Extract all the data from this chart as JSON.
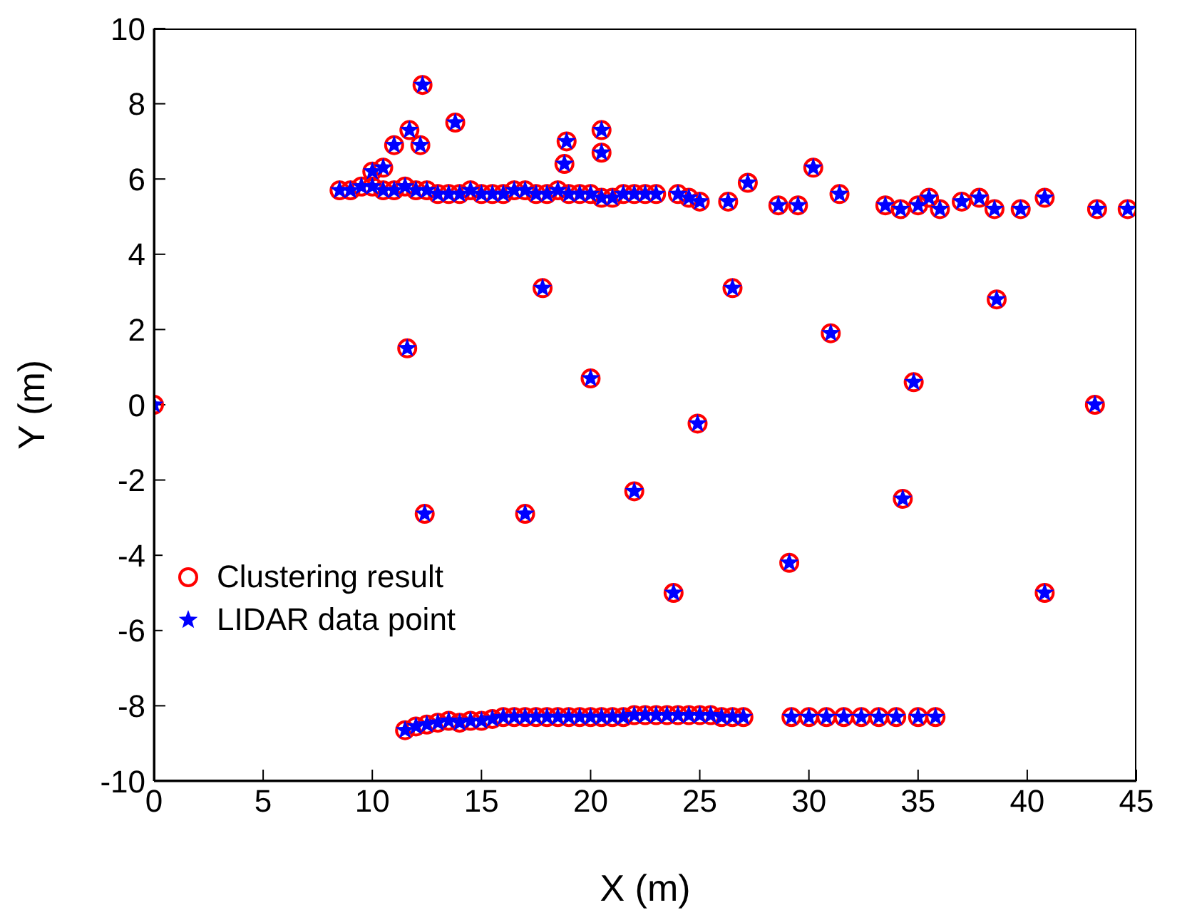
{
  "chart_data": {
    "type": "scatter",
    "xlabel": "X (m)",
    "ylabel": "Y (m)",
    "xlim": [
      0,
      45
    ],
    "xticks": [
      0,
      5,
      10,
      15,
      20,
      25,
      30,
      35,
      40,
      45
    ],
    "ylim": [
      -10,
      10
    ],
    "yticks": [
      -10,
      -8,
      -6,
      -4,
      -2,
      0,
      2,
      4,
      6,
      8,
      10
    ],
    "grid": false,
    "legend": "bottom left",
    "x": [
      8.5,
      9,
      9.5,
      10,
      10.5,
      11,
      11.5,
      12,
      12.5,
      13,
      13.5,
      14,
      14.5,
      15,
      15.5,
      16,
      16.5,
      17,
      17.5,
      18,
      18.5,
      19,
      19.5,
      20,
      20.5,
      21,
      21.5,
      22,
      22.5,
      23,
      24,
      24.5,
      25,
      26.3,
      27.2,
      28.6,
      29.5,
      30.2,
      31.4,
      33.5,
      34.2,
      35,
      35.5,
      36,
      37,
      37.8,
      38.5,
      39.7,
      40.8,
      43.2,
      44.6,
      10,
      10.5,
      11,
      11.7,
      12.2,
      12.3,
      13.8,
      18.8,
      18.9,
      20.5,
      20.5,
      0,
      11.6,
      17.8,
      20,
      24.9,
      26.5,
      31,
      34.8,
      38.6,
      43.1,
      12.4,
      17,
      22,
      23.8,
      29.1,
      34.3,
      40.8,
      11.5,
      12,
      12.5,
      13,
      13.5,
      14,
      14.5,
      15,
      15.5,
      16,
      16.5,
      17,
      17.5,
      18,
      18.5,
      19,
      19.5,
      20,
      20.5,
      21,
      21.5,
      22,
      22.5,
      23,
      23.5,
      24,
      24.5,
      25,
      25.5,
      26,
      26.5,
      27,
      29.2,
      30,
      30.8,
      31.6,
      32.4,
      33.2,
      34,
      35,
      35.8
    ],
    "series": [
      {
        "name": "Clustering result",
        "color": "#ff0000",
        "marker": "circle",
        "values": [
          5.7,
          5.7,
          5.8,
          5.8,
          5.7,
          5.7,
          5.8,
          5.7,
          5.7,
          5.6,
          5.6,
          5.6,
          5.7,
          5.6,
          5.6,
          5.6,
          5.7,
          5.7,
          5.6,
          5.6,
          5.7,
          5.6,
          5.6,
          5.6,
          5.5,
          5.5,
          5.6,
          5.6,
          5.6,
          5.6,
          5.6,
          5.5,
          5.4,
          5.4,
          5.9,
          5.3,
          5.3,
          6.3,
          5.6,
          5.3,
          5.2,
          5.3,
          5.5,
          5.2,
          5.4,
          5.5,
          5.2,
          5.2,
          5.5,
          5.2,
          5.2,
          6.2,
          6.3,
          6.9,
          7.3,
          6.9,
          8.5,
          7.5,
          6.4,
          7.0,
          6.7,
          7.3,
          0,
          1.5,
          3.1,
          0.7,
          -0.5,
          3.1,
          1.9,
          0.6,
          2.8,
          0,
          -2.9,
          -2.9,
          -2.3,
          -5.0,
          -4.2,
          -2.5,
          -5.0,
          -8.65,
          -8.55,
          -8.5,
          -8.45,
          -8.4,
          -8.45,
          -8.4,
          -8.4,
          -8.35,
          -8.3,
          -8.3,
          -8.3,
          -8.3,
          -8.3,
          -8.3,
          -8.3,
          -8.3,
          -8.3,
          -8.3,
          -8.3,
          -8.3,
          -8.25,
          -8.25,
          -8.25,
          -8.25,
          -8.25,
          -8.25,
          -8.25,
          -8.25,
          -8.3,
          -8.3,
          -8.3,
          -8.3,
          -8.3,
          -8.3,
          -8.3,
          -8.3,
          -8.3,
          -8.3,
          -8.3,
          -8.3
        ]
      },
      {
        "name": "LIDAR data point",
        "color": "#0000ff",
        "marker": "star",
        "values": [
          5.7,
          5.7,
          5.8,
          5.8,
          5.7,
          5.7,
          5.8,
          5.7,
          5.7,
          5.6,
          5.6,
          5.6,
          5.7,
          5.6,
          5.6,
          5.6,
          5.7,
          5.7,
          5.6,
          5.6,
          5.7,
          5.6,
          5.6,
          5.6,
          5.5,
          5.5,
          5.6,
          5.6,
          5.6,
          5.6,
          5.6,
          5.5,
          5.4,
          5.4,
          5.9,
          5.3,
          5.3,
          6.3,
          5.6,
          5.3,
          5.2,
          5.3,
          5.5,
          5.2,
          5.4,
          5.5,
          5.2,
          5.2,
          5.5,
          5.2,
          5.2,
          6.2,
          6.3,
          6.9,
          7.3,
          6.9,
          8.5,
          7.5,
          6.4,
          7.0,
          6.7,
          7.3,
          0,
          1.5,
          3.1,
          0.7,
          -0.5,
          3.1,
          1.9,
          0.6,
          2.8,
          0,
          -2.9,
          -2.9,
          -2.3,
          -5.0,
          -4.2,
          -2.5,
          -5.0,
          -8.65,
          -8.55,
          -8.5,
          -8.45,
          -8.4,
          -8.45,
          -8.4,
          -8.4,
          -8.35,
          -8.3,
          -8.3,
          -8.3,
          -8.3,
          -8.3,
          -8.3,
          -8.3,
          -8.3,
          -8.3,
          -8.3,
          -8.3,
          -8.3,
          -8.25,
          -8.25,
          -8.25,
          -8.25,
          -8.25,
          -8.25,
          -8.25,
          -8.25,
          -8.3,
          -8.3,
          -8.3,
          -8.3,
          -8.3,
          -8.3,
          -8.3,
          -8.3,
          -8.3,
          -8.3,
          -8.3,
          -8.3
        ]
      }
    ]
  }
}
